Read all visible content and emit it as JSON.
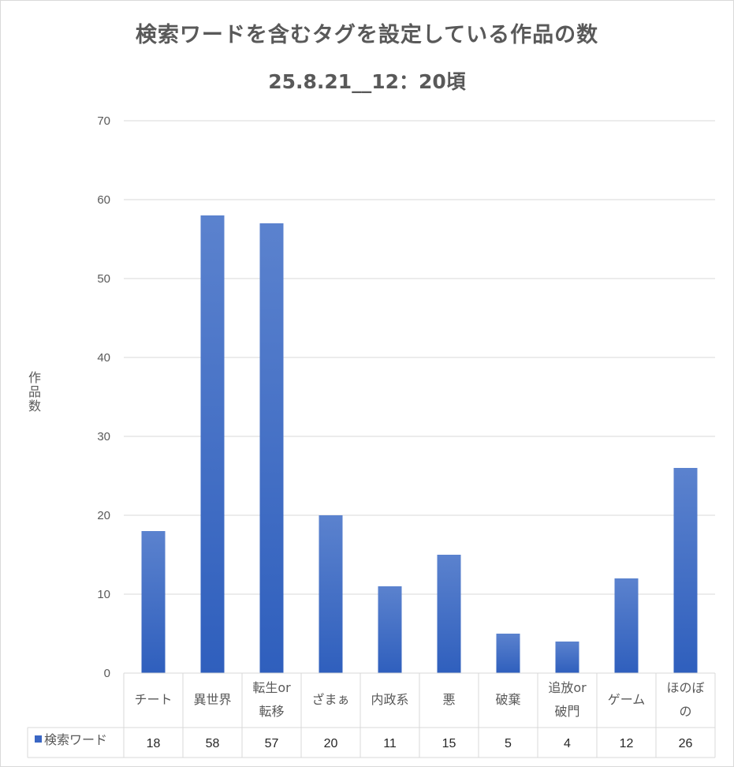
{
  "chart_data": {
    "type": "bar",
    "title": "検索ワードを含むタグを設定している作品の数",
    "subtitle": "25.8.21__12：20頃",
    "ylabel": "作品数",
    "xlabel": "",
    "ylim": [
      0,
      70
    ],
    "yticks": [
      0,
      10,
      20,
      30,
      40,
      50,
      60,
      70
    ],
    "grid": true,
    "legend": "data-table-left",
    "categories": [
      [
        "チート"
      ],
      [
        "異世界"
      ],
      [
        "転生or",
        "転移"
      ],
      [
        "ざまぁ"
      ],
      [
        "内政系"
      ],
      [
        "悪"
      ],
      [
        "破棄"
      ],
      [
        "追放or",
        "破門"
      ],
      [
        "ゲーム"
      ],
      [
        "ほのぼ",
        "の"
      ]
    ],
    "series": [
      {
        "name": "検索ワード",
        "values": [
          18,
          58,
          57,
          20,
          11,
          15,
          5,
          4,
          12,
          26
        ]
      }
    ],
    "colors": {
      "bar_top": "#5b82ce",
      "bar_bottom": "#2f5fbd",
      "legend_key": "#3a66c4",
      "grid": "#d9d9d9"
    }
  }
}
